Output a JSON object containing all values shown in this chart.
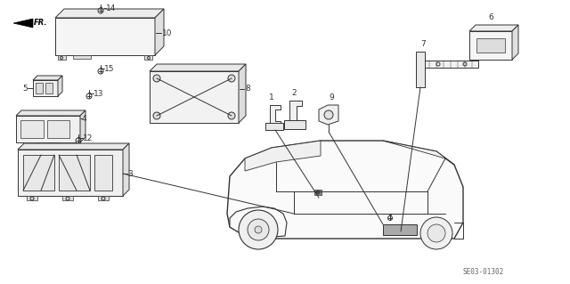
{
  "bg_color": "#ffffff",
  "line_color": "#333333",
  "part_number": "SE03-01302",
  "figsize": [
    6.4,
    3.19
  ],
  "dpi": 100
}
